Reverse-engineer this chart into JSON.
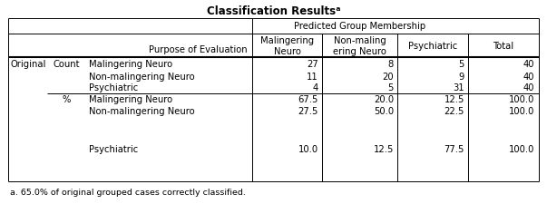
{
  "title": "Classification Resultsᵃ",
  "footnote": "a. 65.0% of original grouped cases correctly classified.",
  "header_span": "Predicted Group Membership",
  "col_headers": [
    "Malingering\nNeuro",
    "Non-maling\nering Neuro",
    "Psychiatric",
    "Total"
  ],
  "purpose_label": "Purpose of Evaluation",
  "left_labels": [
    [
      "Original",
      "Count",
      "Malingering Neuro"
    ],
    [
      "",
      "",
      "Non-malingering Neuro"
    ],
    [
      "",
      "",
      "Psychiatric"
    ],
    [
      "",
      "%",
      "Malingering Neuro"
    ],
    [
      "",
      "",
      "Non-malingering Neuro"
    ],
    [
      "",
      "",
      "Psychiatric"
    ]
  ],
  "data_values": [
    [
      "27",
      "8",
      "5",
      "40"
    ],
    [
      "11",
      "20",
      "9",
      "40"
    ],
    [
      "4",
      "5",
      "31",
      "40"
    ],
    [
      "67.5",
      "20.0",
      "12.5",
      "100.0"
    ],
    [
      "27.5",
      "50.0",
      "22.5",
      "100.0"
    ],
    [
      "10.0",
      "12.5",
      "77.5",
      "100.0"
    ]
  ],
  "bg_color": "#ffffff",
  "border_color": "#000000",
  "font_size": 7.2,
  "title_font_size": 8.5,
  "footnote_font_size": 6.8
}
